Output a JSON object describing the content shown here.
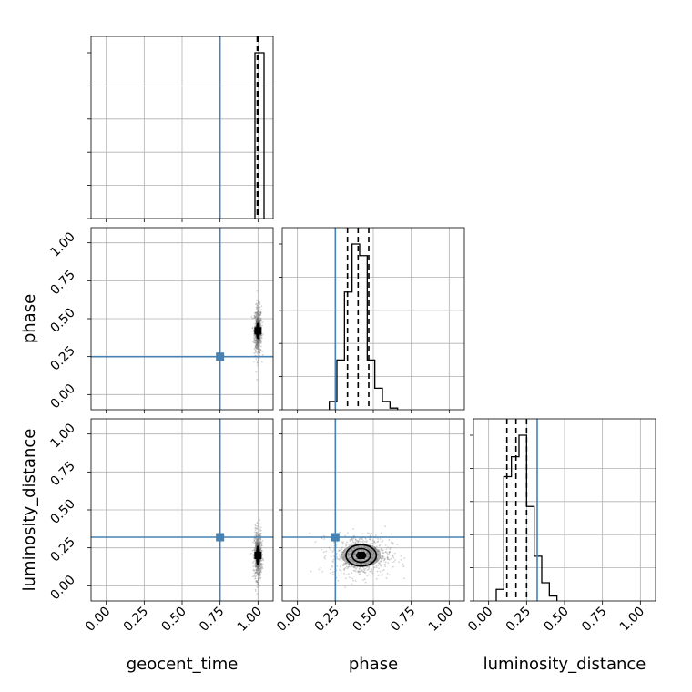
{
  "chart_data": {
    "type": "corner",
    "parameters": [
      "geocent_time",
      "phase",
      "luminosity_distance"
    ],
    "axis_labels": {
      "x": [
        "geocent_time",
        "phase",
        "luminosity_distance"
      ],
      "y": [
        "phase",
        "luminosity_distance"
      ]
    },
    "tick_labels": [
      "0.00",
      "0.25",
      "0.50",
      "0.75",
      "1.00"
    ],
    "range": [
      -0.1,
      1.1
    ],
    "grid": true,
    "truths": {
      "geocent_time": 0.75,
      "phase": 0.25,
      "luminosity_distance": 0.32
    },
    "truth_color": "#4682b4",
    "histograms": [
      {
        "parameter": "geocent_time",
        "bins": [
          [
            0.98,
            1.04
          ]
        ],
        "values": [
          1.0
        ],
        "quantiles": [
          0.995,
          1.0,
          1.005
        ]
      },
      {
        "parameter": "phase",
        "bins": [
          [
            0.21,
            0.26
          ],
          [
            0.26,
            0.31
          ],
          [
            0.31,
            0.36
          ],
          [
            0.36,
            0.41
          ],
          [
            0.41,
            0.46
          ],
          [
            0.46,
            0.51
          ],
          [
            0.51,
            0.56
          ],
          [
            0.56,
            0.61
          ],
          [
            0.61,
            0.66
          ]
        ],
        "values": [
          0.05,
          0.3,
          0.71,
          1.0,
          0.93,
          0.3,
          0.13,
          0.05,
          0.01
        ],
        "quantiles": [
          0.33,
          0.4,
          0.47
        ]
      },
      {
        "parameter": "luminosity_distance",
        "bins": [
          [
            0.05,
            0.1
          ],
          [
            0.1,
            0.15
          ],
          [
            0.15,
            0.2
          ],
          [
            0.2,
            0.25
          ],
          [
            0.25,
            0.3
          ],
          [
            0.3,
            0.35
          ],
          [
            0.35,
            0.4
          ],
          [
            0.4,
            0.45
          ]
        ],
        "values": [
          0.07,
          0.75,
          0.87,
          1.0,
          0.57,
          0.27,
          0.11,
          0.03
        ],
        "quantiles": [
          0.12,
          0.18,
          0.25
        ]
      }
    ],
    "scatter_panels": [
      {
        "x": "geocent_time",
        "y": "phase",
        "center": [
          1.0,
          0.42
        ],
        "spread": [
          0.012,
          0.08
        ],
        "contours": [
          [
            0.008,
            0.05
          ],
          [
            0.006,
            0.035
          ]
        ]
      },
      {
        "x": "geocent_time",
        "y": "luminosity_distance",
        "center": [
          1.0,
          0.2
        ],
        "spread": [
          0.012,
          0.08
        ],
        "contours": [
          [
            0.008,
            0.06
          ],
          [
            0.006,
            0.04
          ]
        ]
      },
      {
        "x": "phase",
        "y": "luminosity_distance",
        "center": [
          0.42,
          0.2
        ],
        "spread": [
          0.1,
          0.07
        ],
        "contours": [
          [
            0.1,
            0.07
          ],
          [
            0.06,
            0.045
          ],
          [
            0.03,
            0.02
          ]
        ]
      }
    ],
    "colors": {
      "hist": "#000000",
      "grid": "#b0b0b0",
      "scatter": "#808080",
      "truth": "#4682b4"
    }
  }
}
